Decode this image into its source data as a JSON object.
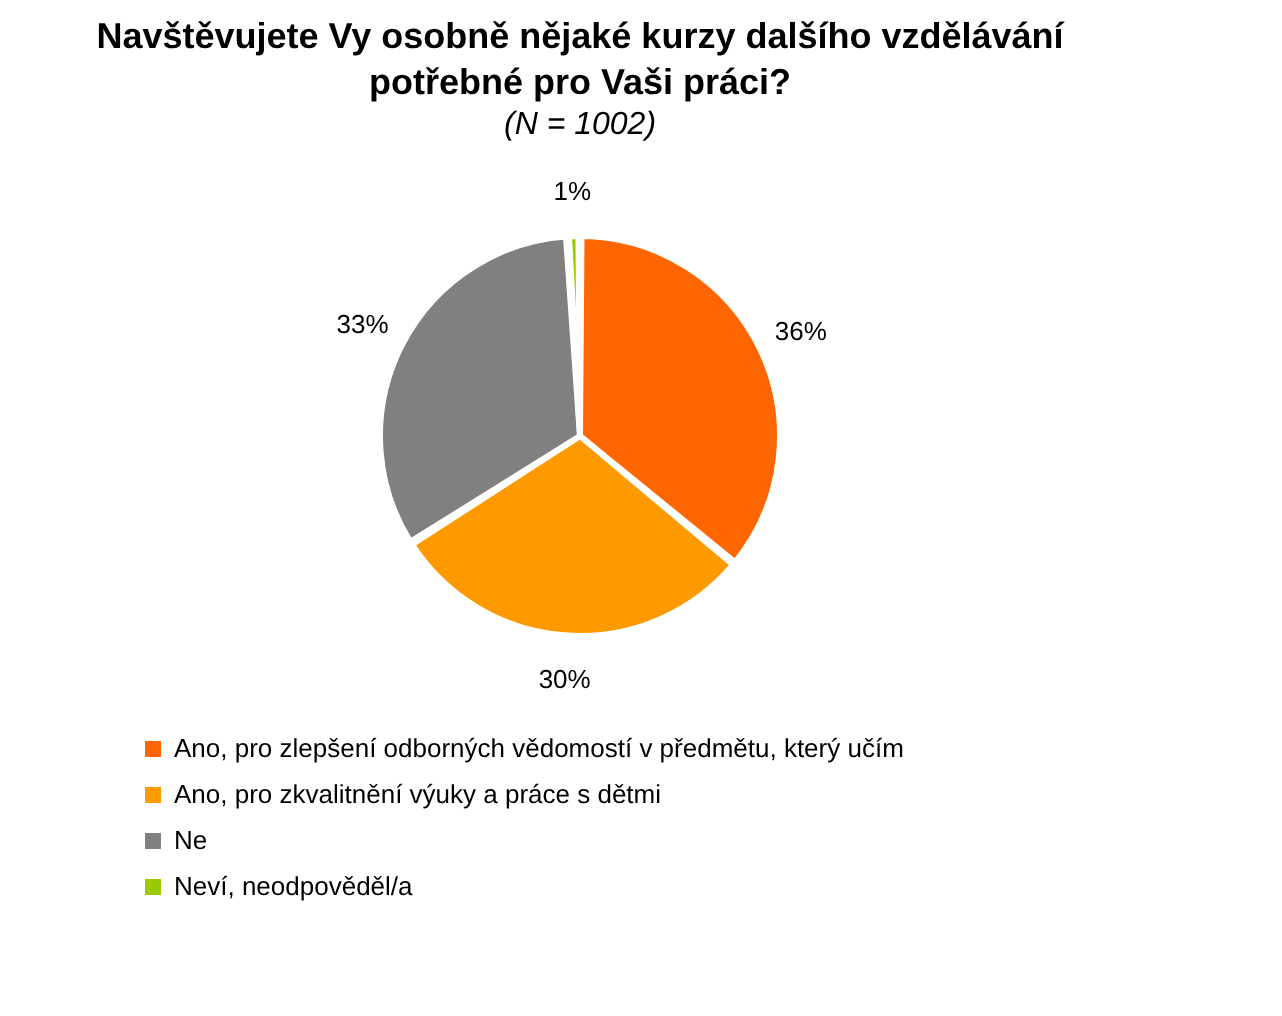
{
  "chart_data": {
    "type": "pie",
    "title": "Navštěvujete Vy osobně nějaké kurzy dalšího vzdělávání potřebné pro Vaši práci?",
    "subtitle": "(N = 1002)",
    "categories": [
      "Ano, pro zlepšení odborných vědomostí v předmětu, který učím",
      "Ano, pro zkvalitnění výuky a práce s dětmi",
      "Ne",
      "Neví, neodpověděl/a"
    ],
    "values": [
      36,
      30,
      33,
      1
    ],
    "colors": [
      "#ff6600",
      "#ff9900",
      "#808080",
      "#99cc00"
    ],
    "value_labels": [
      "36%",
      "30%",
      "33%",
      "1%"
    ],
    "legend": "bottom left"
  }
}
